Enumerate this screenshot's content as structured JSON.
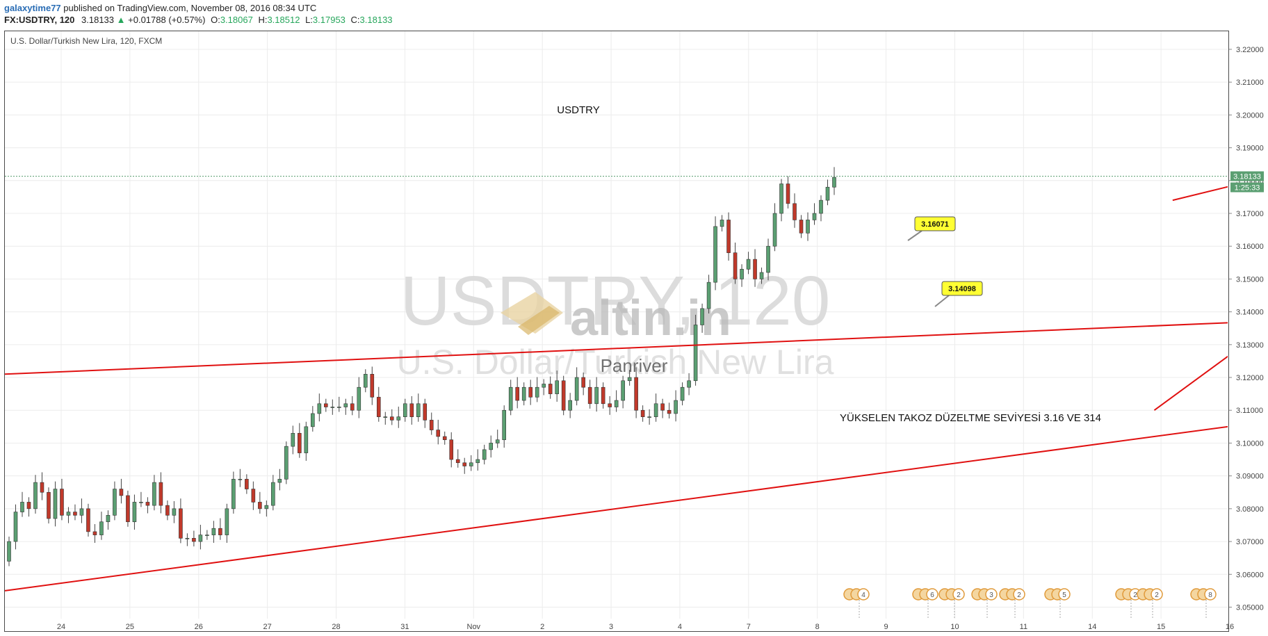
{
  "header": {
    "author": "galaxytime77",
    "published": "published on TradingView.com, November 08, 2016 08:34 UTC",
    "symbol": "FX:USDTRY, 120",
    "last": "3.18133",
    "change_arrow": "▲",
    "change": "+0.01788 (+0.57%)",
    "o_label": "O:",
    "o": "3.18067",
    "h_label": "H:",
    "h": "3.18512",
    "l_label": "L:",
    "l": "3.17953",
    "c_label": "C:",
    "c": "3.18133"
  },
  "colors": {
    "up": "#5b9f72",
    "down": "#c0392b",
    "trend": "#e01010",
    "arrow": "#1f3fd6",
    "grid": "#ececec",
    "price_line": "#5b9f72"
  },
  "chart_data": {
    "type": "candlestick",
    "title": "U.S. Dollar/Turkish New Lira, 120, FXCM",
    "x_ticks": [
      "24",
      "25",
      "26",
      "27",
      "28",
      "31",
      "Nov",
      "2",
      "3",
      "4",
      "7",
      "8",
      "9",
      "10",
      "11",
      "14",
      "15",
      "16"
    ],
    "y_ticks": [
      "3.22000",
      "3.21000",
      "3.20000",
      "3.19000",
      "3.18000",
      "3.17000",
      "3.16000",
      "3.15000",
      "3.14000",
      "3.13000",
      "3.12000",
      "3.11000",
      "3.10000",
      "3.09000",
      "3.08000",
      "3.07000",
      "3.06000",
      "3.05000"
    ],
    "ylim": [
      3.0465,
      3.2255
    ],
    "last_price": "3.18133",
    "countdown": "1:25:33",
    "closes": [
      3.07,
      3.079,
      3.082,
      3.08,
      3.088,
      3.085,
      3.077,
      3.086,
      3.078,
      3.079,
      3.078,
      3.08,
      3.073,
      3.072,
      3.076,
      3.078,
      3.086,
      3.084,
      3.076,
      3.082,
      3.082,
      3.081,
      3.088,
      3.081,
      3.078,
      3.08,
      3.071,
      3.071,
      3.07,
      3.072,
      3.072,
      3.074,
      3.072,
      3.08,
      3.089,
      3.089,
      3.086,
      3.082,
      3.08,
      3.081,
      3.088,
      3.089,
      3.099,
      3.103,
      3.097,
      3.105,
      3.109,
      3.112,
      3.111,
      3.111,
      3.111,
      3.112,
      3.11,
      3.117,
      3.121,
      3.114,
      3.108,
      3.108,
      3.107,
      3.108,
      3.112,
      3.108,
      3.112,
      3.107,
      3.104,
      3.102,
      3.101,
      3.095,
      3.094,
      3.093,
      3.094,
      3.095,
      3.098,
      3.1,
      3.101,
      3.11,
      3.117,
      3.113,
      3.117,
      3.114,
      3.117,
      3.118,
      3.115,
      3.119,
      3.11,
      3.113,
      3.12,
      3.117,
      3.112,
      3.117,
      3.112,
      3.111,
      3.113,
      3.119,
      3.12,
      3.11,
      3.108,
      3.108,
      3.112,
      3.11,
      3.109,
      3.113,
      3.117,
      3.119,
      3.136,
      3.141,
      3.149,
      3.166,
      3.168,
      3.158,
      3.15,
      3.153,
      3.156,
      3.15,
      3.152,
      3.16,
      3.17,
      3.179,
      3.173,
      3.168,
      3.164,
      3.168,
      3.17,
      3.174,
      3.178,
      3.181
    ],
    "annotations": [
      {
        "text": "USDTRY"
      },
      {
        "text": "YÜKSELEN TAKOZ DÜZELTME SEVİYESİ 3.16 VE 314"
      },
      {
        "text": "3.16071",
        "value": 3.16071
      },
      {
        "text": "3.14098",
        "value": 3.14098
      }
    ],
    "trendlines": [
      {
        "from": [
          0,
          3.121
        ],
        "to": [
          1.5,
          3.1445
        ],
        "color": "red"
      },
      {
        "from": [
          0,
          3.055
        ],
        "to": [
          1.62,
          3.136
        ],
        "color": "red"
      },
      {
        "from": [
          0.955,
          3.174
        ],
        "to": [
          1.24,
          3.2
        ],
        "color": "red"
      },
      {
        "from": [
          0.94,
          3.11
        ],
        "to": [
          1.35,
          3.222
        ],
        "color": "red"
      },
      {
        "from": [
          1.18,
          3.189
        ],
        "to": [
          1.23,
          3.16
        ],
        "color": "blue",
        "arrow": true
      },
      {
        "from": [
          1.205,
          3.19
        ],
        "to": [
          1.32,
          3.141
        ],
        "color": "blue",
        "arrow": true
      }
    ],
    "watermark": {
      "symbol": "USDTRY, 120",
      "name": "U.S. Dollar/Turkish New Lira",
      "logo": "altin.in",
      "tagline": "Panriver"
    },
    "event_markers": [
      "4",
      "6",
      "2",
      "3",
      "2",
      "5",
      "2",
      "2",
      "8"
    ]
  }
}
